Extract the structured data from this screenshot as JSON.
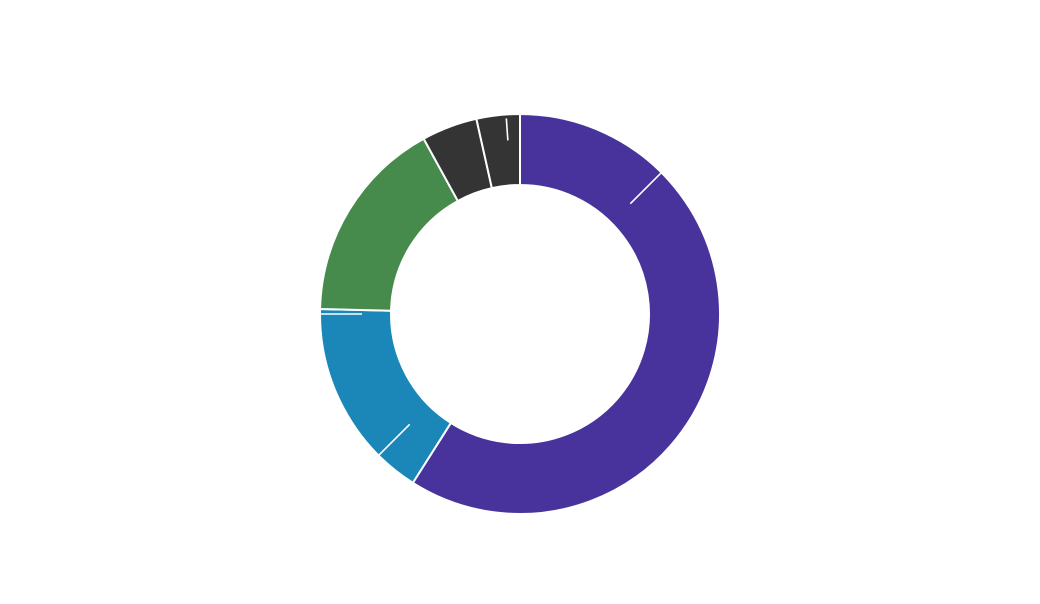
{
  "chart_data": {
    "type": "pie",
    "variant": "donut",
    "title": "",
    "legend": "none",
    "slices": [
      {
        "value": 59.0,
        "color": "#47339b"
      },
      {
        "value": 16.4,
        "color": "#1b87b8"
      },
      {
        "value": 16.6,
        "color": "#468b4b"
      },
      {
        "value": 4.5,
        "color": "#343434"
      },
      {
        "value": 3.5,
        "color": "#343434"
      }
    ],
    "label_ticks": [
      {
        "angle_deg": 45,
        "inner": 156,
        "outer": 208
      },
      {
        "angle_deg": 225,
        "inner": 156,
        "outer": 206
      },
      {
        "angle_deg": 270,
        "inner": 158,
        "outer": 200
      },
      {
        "angle_deg": 356,
        "inner": 174,
        "outer": 196
      }
    ]
  }
}
